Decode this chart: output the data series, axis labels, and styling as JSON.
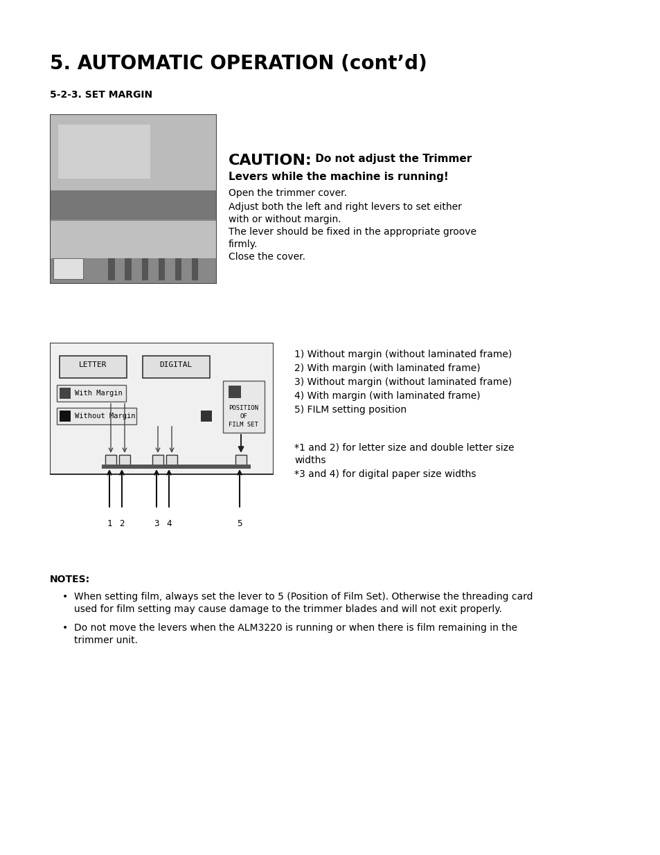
{
  "title": "5. AUTOMATIC OPERATION (cont’d)",
  "subtitle": "5-2-3. SET MARGIN",
  "bg_color": "#ffffff",
  "caution_line1_bold": "CAUTION:",
  "caution_line1_rest": " Do not adjust the Trimmer",
  "caution_line2": "Levers while the machine is running!",
  "caution_body": [
    "Open the trimmer cover.",
    "Adjust both the left and right levers to set either",
    "with or without margin.",
    "The lever should be fixed in the appropriate groove",
    "firmly.",
    "Close the cover."
  ],
  "numbered_list": [
    "1) Without margin (without laminated frame)",
    "2) With margin (with laminated frame)",
    "3) Without margin (without laminated frame)",
    "4) With margin (with laminated frame)",
    "5) FILM setting position"
  ],
  "footnote1": "*1 and 2) for letter size and double letter size",
  "footnote1b": "widths",
  "footnote2": "*3 and 4) for digital paper size widths",
  "notes_header": "NOTES:",
  "bullet1_lines": [
    "When setting film, always set the lever to 5 (Position of Film Set). Otherwise the threading card",
    "used for film setting may cause damage to the trimmer blades and will not exit properly."
  ],
  "bullet2_lines": [
    "Do not move the levers when the ALM3220 is running or when there is film remaining in the",
    "trimmer unit."
  ]
}
